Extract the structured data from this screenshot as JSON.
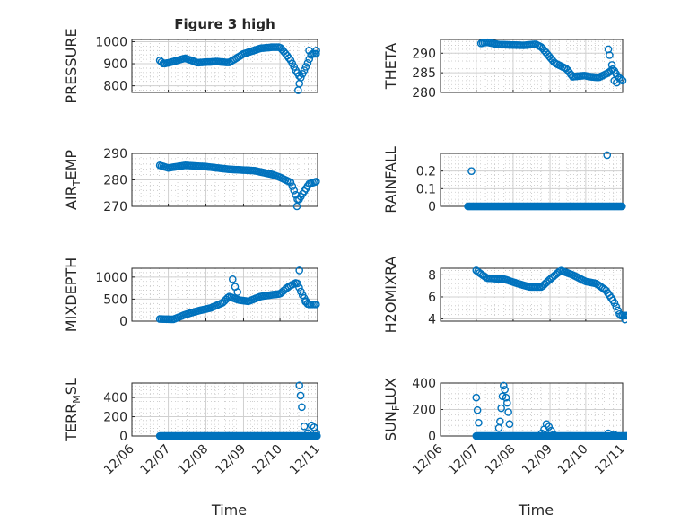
{
  "figure": {
    "title": "Figure 3 high"
  },
  "chart_data": [
    {
      "type": "scatter",
      "title": "Figure 3 high",
      "ylabel": "PRESSURE",
      "ylabel_sub": "",
      "ylabel_suffix": "",
      "xlabel": "",
      "ylim": [
        770,
        1010
      ],
      "yticks": [
        800,
        900,
        1000
      ],
      "xticklabels": [],
      "grid": true,
      "series": [
        {
          "color": "#0072bd",
          "marker": "o",
          "x": [],
          "y": []
        }
      ]
    },
    {
      "type": "scatter",
      "title": "",
      "ylabel": "THETA",
      "ylabel_sub": "",
      "ylabel_suffix": "",
      "xlabel": "",
      "ylim": [
        280,
        293.5
      ],
      "yticks": [
        280,
        285,
        290
      ],
      "xticklabels": [],
      "grid": true,
      "series": [
        {
          "color": "#0072bd",
          "marker": "o",
          "x": [],
          "y": []
        }
      ]
    },
    {
      "type": "scatter",
      "title": "",
      "ylabel": "AIR",
      "ylabel_sub": "T",
      "ylabel_suffix": "EMP",
      "xlabel": "",
      "ylim": [
        270,
        290
      ],
      "yticks": [
        270,
        280,
        290
      ],
      "xticklabels": [],
      "grid": true,
      "series": [
        {
          "color": "#0072bd",
          "marker": "o",
          "x": [],
          "y": []
        }
      ]
    },
    {
      "type": "scatter",
      "title": "",
      "ylabel": "RAINFALL",
      "ylabel_sub": "",
      "ylabel_suffix": "",
      "xlabel": "",
      "ylim": [
        0,
        0.3
      ],
      "yticks": [
        0,
        0.1,
        0.2
      ],
      "xticklabels": [],
      "grid": true,
      "series": [
        {
          "color": "#0072bd",
          "marker": "o",
          "x": [],
          "y": []
        }
      ]
    },
    {
      "type": "scatter",
      "title": "",
      "ylabel": "MIXDEPTH",
      "ylabel_sub": "",
      "ylabel_suffix": "",
      "xlabel": "",
      "ylim": [
        0,
        1200
      ],
      "yticks": [
        0,
        500,
        1000
      ],
      "xticklabels": [],
      "grid": true,
      "series": [
        {
          "color": "#0072bd",
          "marker": "o",
          "x": [],
          "y": []
        }
      ]
    },
    {
      "type": "scatter",
      "title": "",
      "ylabel": "H2OMIXRA",
      "ylabel_sub": "",
      "ylabel_suffix": "",
      "xlabel": "",
      "ylim": [
        3.8,
        8.6
      ],
      "yticks": [
        4,
        6,
        8
      ],
      "xticklabels": [],
      "grid": true,
      "series": [
        {
          "color": "#0072bd",
          "marker": "o",
          "x": [],
          "y": []
        }
      ]
    },
    {
      "type": "scatter",
      "title": "",
      "ylabel": "TERR",
      "ylabel_sub": "M",
      "ylabel_suffix": "SL",
      "xlabel": "Time",
      "ylim": [
        0,
        550
      ],
      "yticks": [
        0,
        200,
        400
      ],
      "xticklabels": [
        "12/06",
        "12/07",
        "12/08",
        "12/09",
        "12/10",
        "12/11"
      ],
      "grid": true,
      "series": [
        {
          "color": "#0072bd",
          "marker": "o",
          "x": [],
          "y": []
        }
      ]
    },
    {
      "type": "scatter",
      "title": "",
      "ylabel": "SUN",
      "ylabel_sub": "F",
      "ylabel_suffix": "LUX",
      "xlabel": "Time",
      "ylim": [
        0,
        400
      ],
      "yticks": [
        0,
        200,
        400
      ],
      "xticklabels": [
        "12/06",
        "12/07",
        "12/08",
        "12/09",
        "12/10",
        "12/11"
      ],
      "grid": true,
      "series": [
        {
          "color": "#0072bd",
          "marker": "o",
          "x": [],
          "y": []
        }
      ]
    }
  ]
}
